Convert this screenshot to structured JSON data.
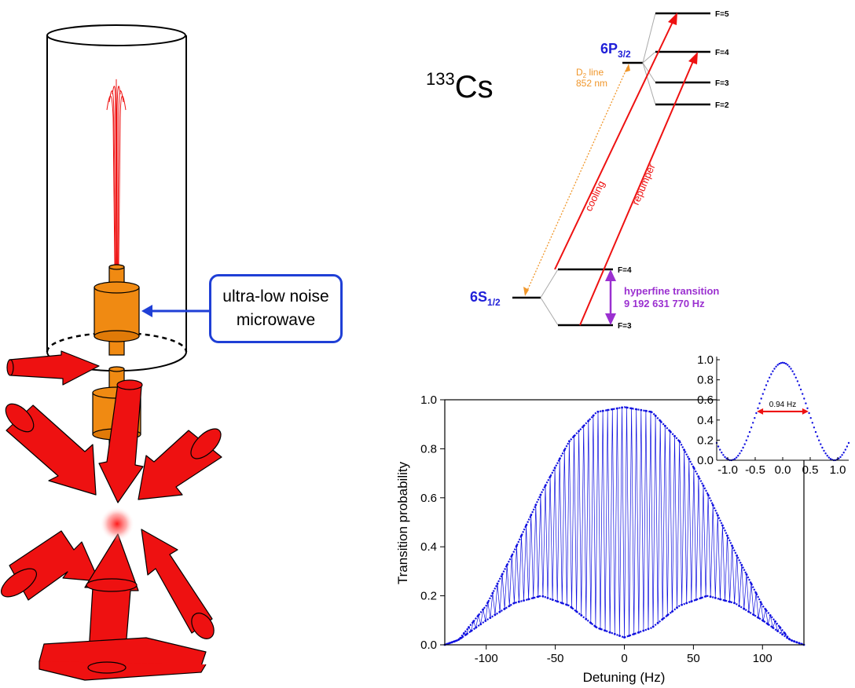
{
  "callout": {
    "line1": "ultra-low noise",
    "line2": "microwave"
  },
  "energy_diagram": {
    "isotope_mass": "133",
    "isotope_symbol": "Cs",
    "excited_state": {
      "main": "6P",
      "sub": "3/2"
    },
    "ground_state": {
      "main": "6S",
      "sub": "1/2"
    },
    "excited_levels": [
      "F=5",
      "F=4",
      "F=3",
      "F=2"
    ],
    "ground_levels": [
      "F=4",
      "F=3"
    ],
    "d2_line": {
      "sub": "2",
      "prefix": "D",
      "suffix": " line",
      "wavelength": "852 nm"
    },
    "cooling_label": "cooling",
    "repumper_label": "repumper",
    "hyperfine": {
      "line1": "hyperfine transition",
      "line2": "9 192 631 770 Hz"
    },
    "colors": {
      "level_label": "#1f1fd8",
      "arrow": "#ee1111",
      "d2": "#f0962a",
      "hyperfine": "#9b30d0"
    }
  },
  "chart_data": [
    {
      "type": "scatter",
      "title": "",
      "xlabel": "Detuning (Hz)",
      "ylabel": "Transition probability",
      "xlim": [
        -130,
        130
      ],
      "ylim": [
        0.0,
        1.0
      ],
      "xticks": [
        "-100",
        "-50",
        "0",
        "50",
        "100"
      ],
      "xtick_values": [
        -100,
        -50,
        0,
        50,
        100
      ],
      "yticks": [
        "0.0",
        "0.2",
        "0.4",
        "0.6",
        "0.8",
        "1.0"
      ],
      "ytick_values": [
        0.0,
        0.2,
        0.4,
        0.6,
        0.8,
        1.0
      ],
      "color": "#1010e0",
      "envelope": {
        "upper": {
          "x": [
            -130,
            -120,
            -100,
            -80,
            -60,
            -40,
            -20,
            0,
            20,
            40,
            60,
            80,
            100,
            120,
            130
          ],
          "y": [
            0.0,
            0.02,
            0.16,
            0.38,
            0.62,
            0.83,
            0.95,
            0.97,
            0.95,
            0.83,
            0.62,
            0.38,
            0.16,
            0.02,
            0.0
          ]
        },
        "lower": {
          "x": [
            -130,
            -120,
            -100,
            -80,
            -60,
            -40,
            -20,
            0,
            20,
            40,
            60,
            80,
            100,
            120,
            130
          ],
          "y": [
            0.0,
            0.02,
            0.1,
            0.17,
            0.2,
            0.16,
            0.07,
            0.03,
            0.07,
            0.16,
            0.2,
            0.17,
            0.1,
            0.02,
            0.0
          ]
        }
      }
    },
    {
      "type": "scatter",
      "title": "",
      "xlabel": "",
      "ylabel": "",
      "xlim": [
        -1.2,
        1.2
      ],
      "ylim": [
        0.0,
        1.0
      ],
      "xticks": [
        "-1.0",
        "-0.5",
        "0.0",
        "0.5",
        "1.0"
      ],
      "xtick_values": [
        -1.0,
        -0.5,
        0.0,
        0.5,
        1.0
      ],
      "yticks": [
        "0.0",
        "0.2",
        "0.4",
        "0.6",
        "0.8",
        "1.0"
      ],
      "ytick_values": [
        0.0,
        0.2,
        0.4,
        0.6,
        0.8,
        1.0
      ],
      "color": "#1010e0",
      "peak": 0.97,
      "fwhm_label": "0.94 Hz",
      "fwhm_value": 0.94
    }
  ]
}
